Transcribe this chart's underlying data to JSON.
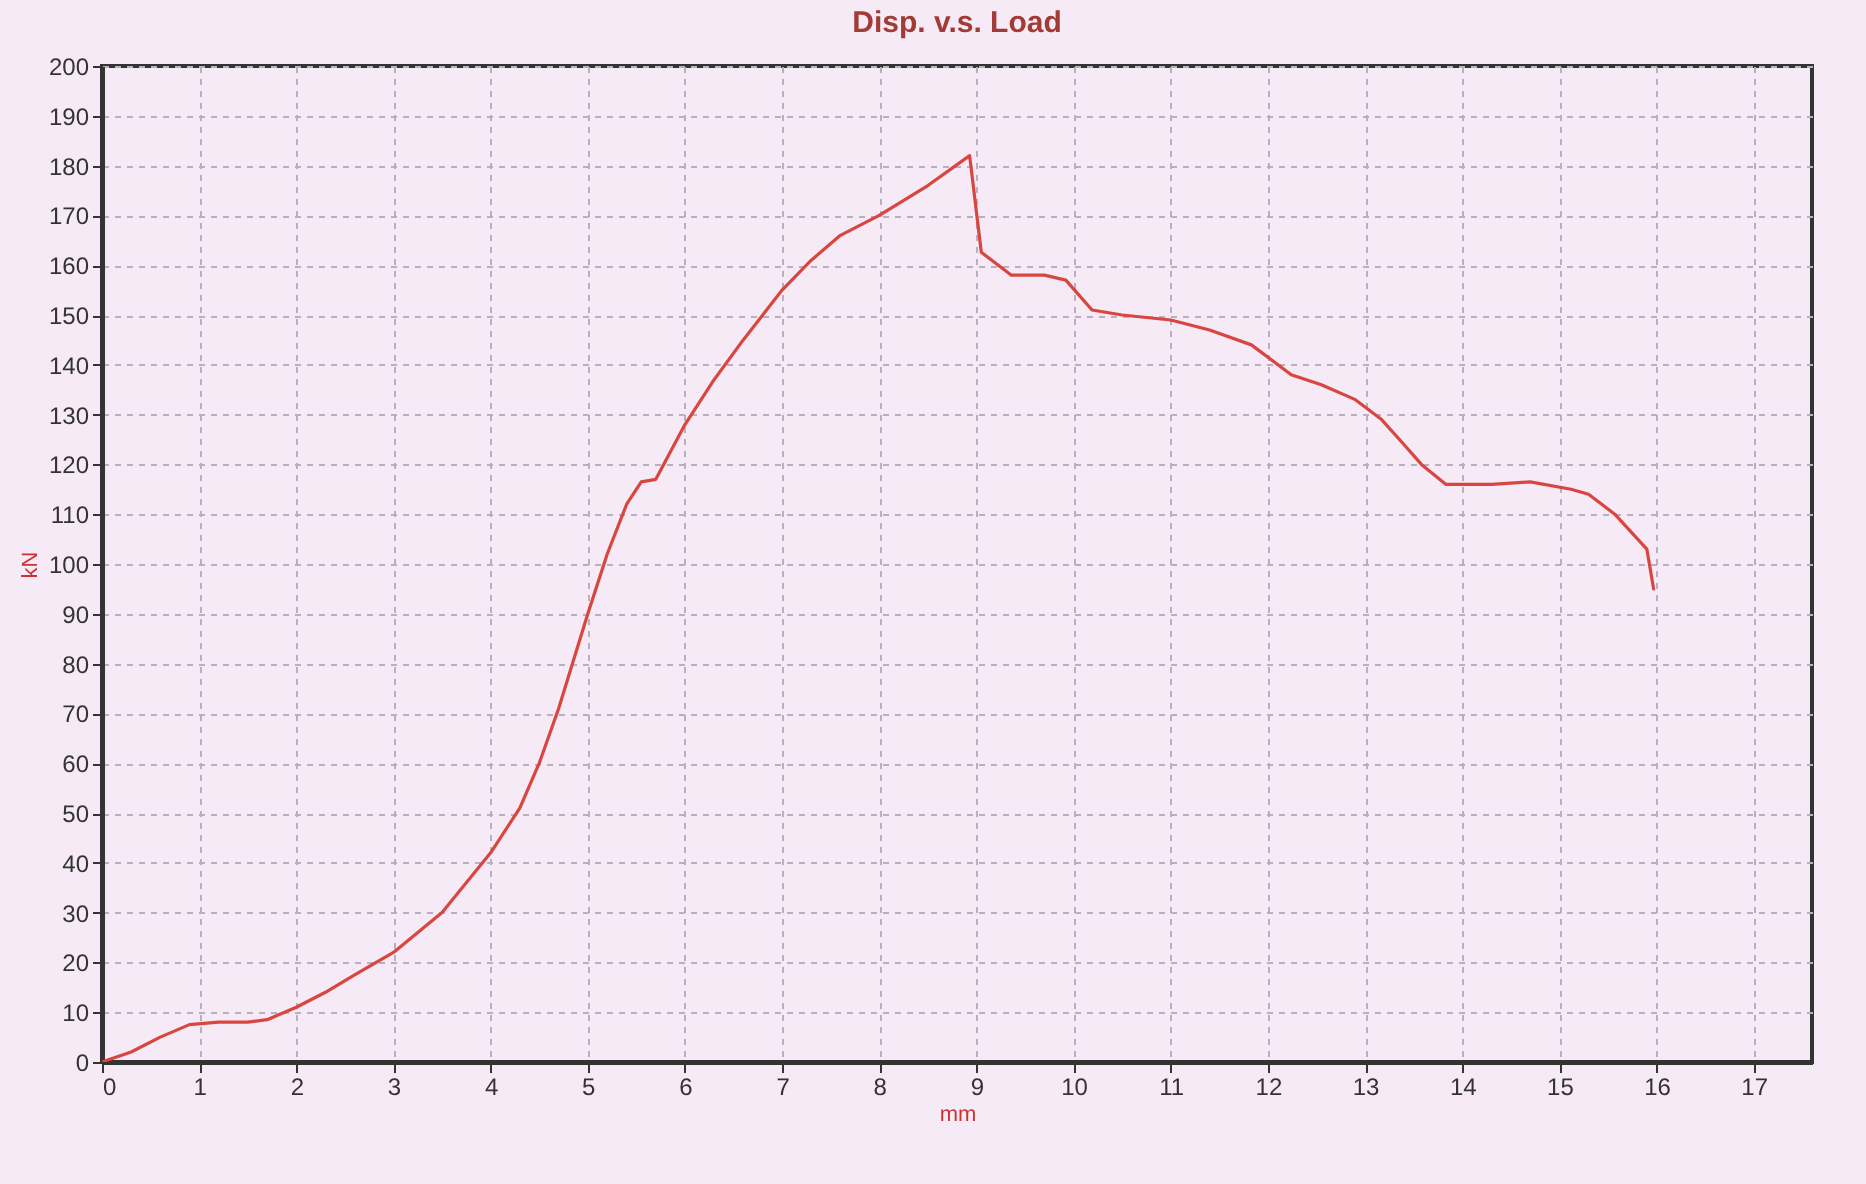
{
  "chart_data": {
    "type": "line",
    "title": "Disp. v.s. Load",
    "xlabel": "mm",
    "ylabel": "kN",
    "xlim": [
      0,
      17.6
    ],
    "xticks": [
      0,
      1,
      2,
      3,
      4,
      5,
      6,
      7,
      8,
      9,
      10,
      11,
      12,
      13,
      14,
      15,
      16,
      17
    ],
    "ylim": [
      0,
      200
    ],
    "yticks": [
      0,
      10,
      20,
      30,
      40,
      50,
      60,
      70,
      80,
      90,
      100,
      110,
      120,
      130,
      140,
      150,
      160,
      170,
      180,
      190,
      200
    ],
    "grid": true,
    "marker": "none",
    "line_style": "solid",
    "series": [
      {
        "color": "#d9463f",
        "x": [
          0,
          0.3,
          0.6,
          0.9,
          1.2,
          1.5,
          1.7,
          2.0,
          2.3,
          2.6,
          3.0,
          3.5,
          4.0,
          4.3,
          4.5,
          4.7,
          5.0,
          5.2,
          5.4,
          5.55,
          5.7,
          6.0,
          6.3,
          6.6,
          7.0,
          7.3,
          7.6,
          8.0,
          8.5,
          8.93,
          9.05,
          9.36,
          9.7,
          9.92,
          10.19,
          10.5,
          11.0,
          11.4,
          11.83,
          12.24,
          12.55,
          12.9,
          13.17,
          13.4,
          13.58,
          13.83,
          14.3,
          14.7,
          15.12,
          15.3,
          15.57,
          15.9,
          15.97
        ],
        "values": [
          0,
          2,
          5,
          7.5,
          8,
          8,
          8.5,
          11,
          14,
          17.5,
          22,
          30,
          42,
          51,
          60,
          71,
          90,
          102,
          112,
          116.5,
          117,
          128,
          137,
          145,
          155,
          161,
          166,
          170,
          176,
          182,
          162.6,
          158,
          158,
          157,
          151,
          150,
          149,
          147,
          144,
          138,
          136,
          133,
          129,
          124,
          120,
          116,
          116,
          116.5,
          115,
          114,
          110,
          103,
          95
        ]
      }
    ]
  }
}
